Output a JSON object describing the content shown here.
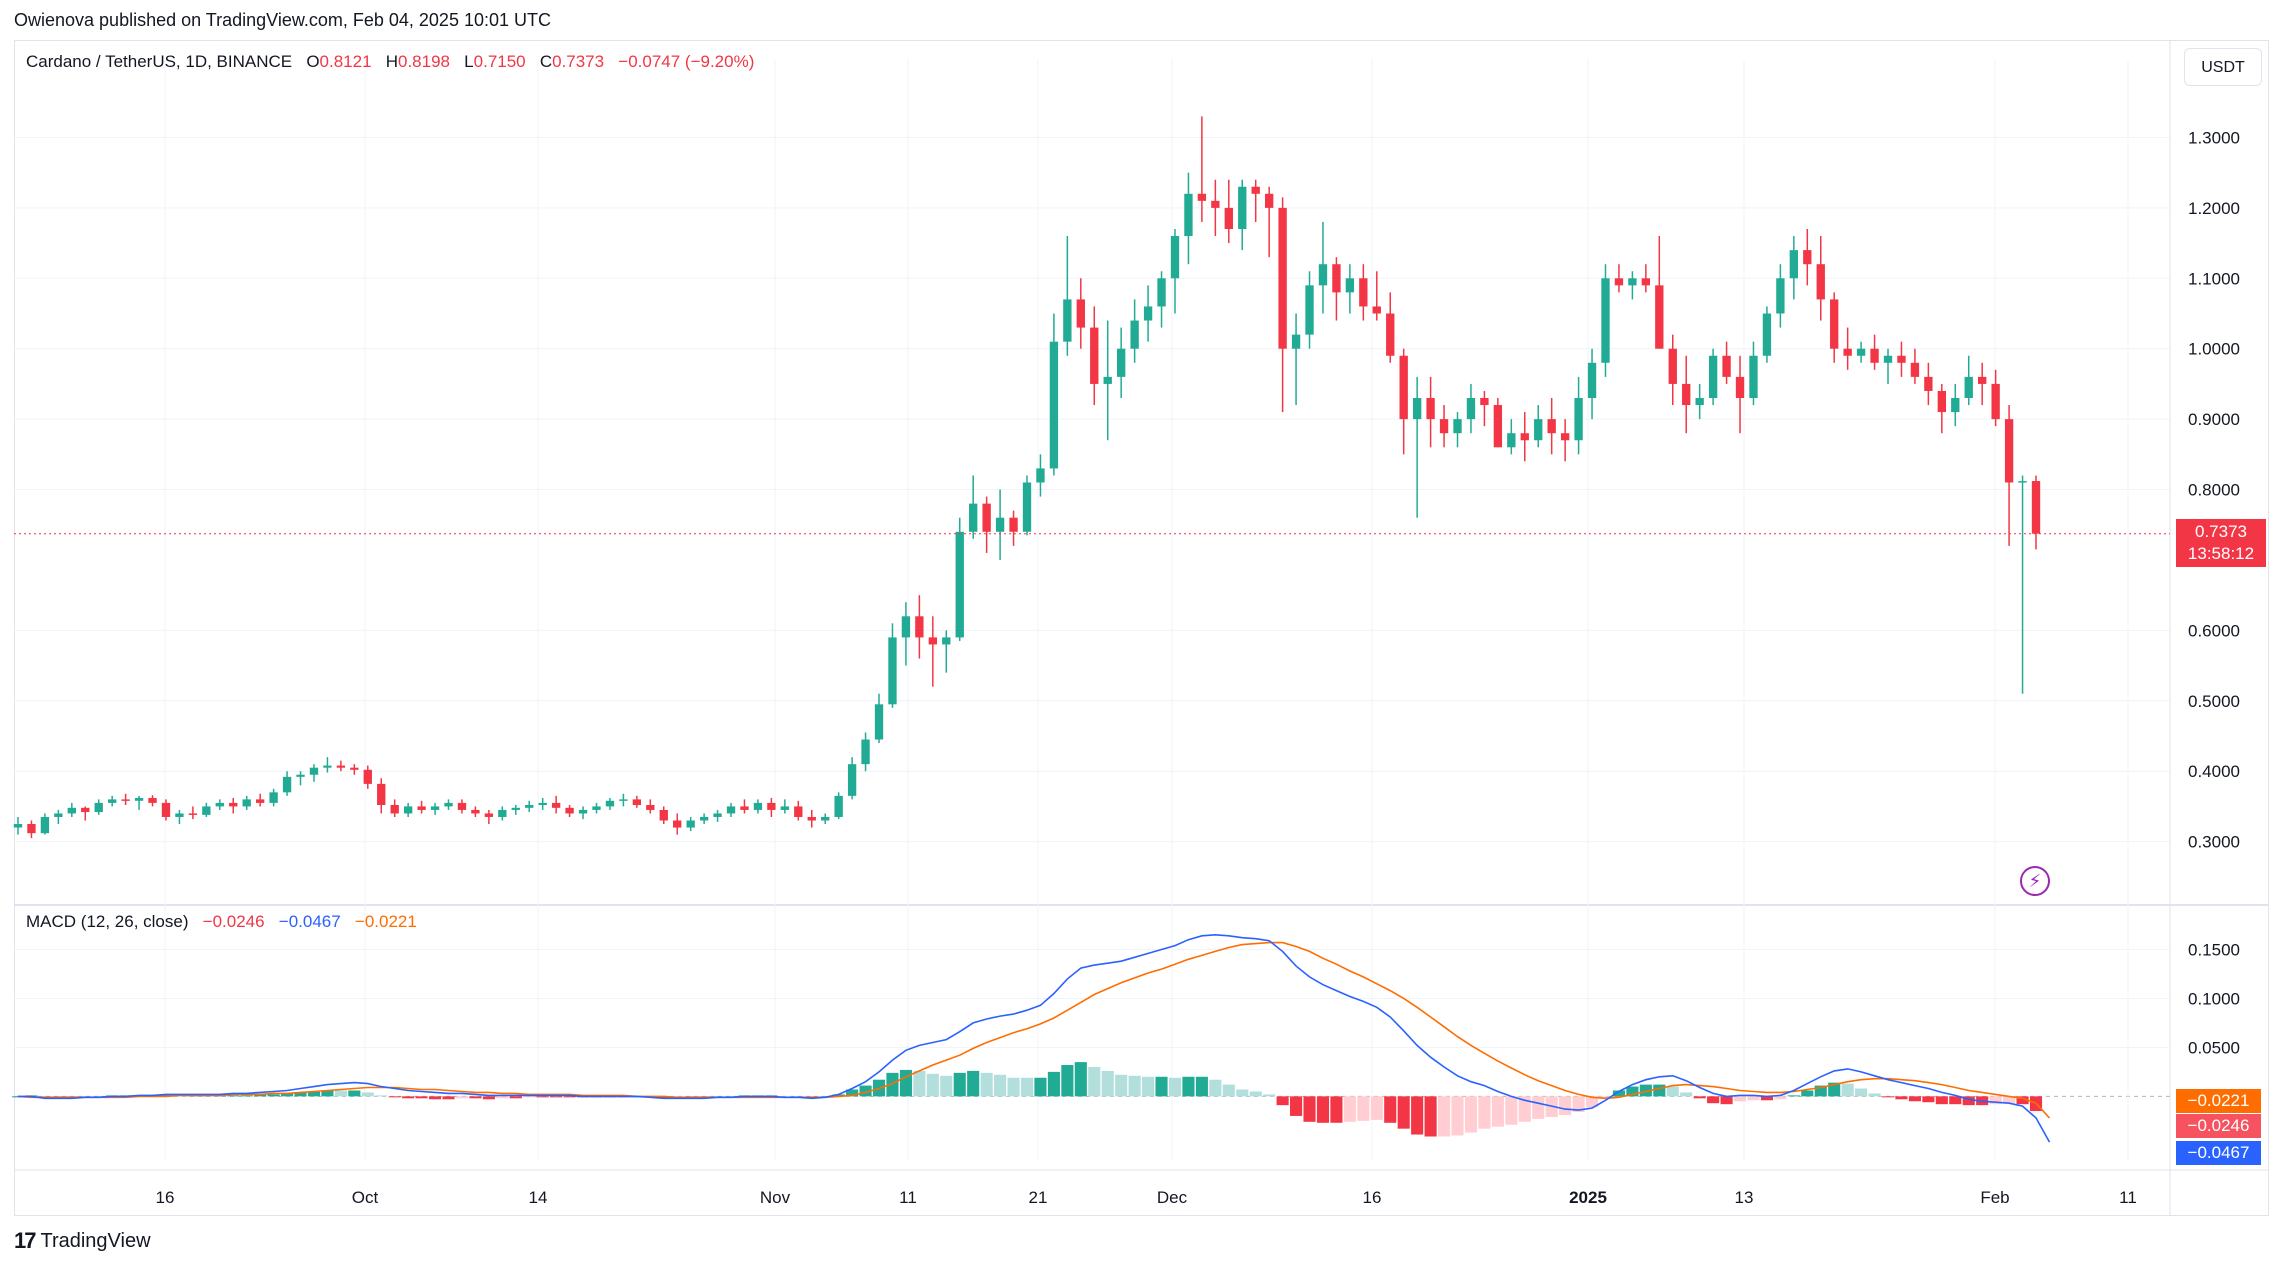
{
  "publisher_line": "Owienova published on TradingView.com, Feb 04, 2025 10:01 UTC",
  "symbol": {
    "title": "Cardano / TetherUS, 1D, BINANCE",
    "o_label": "O",
    "o_value": "0.8121",
    "h_label": "H",
    "h_value": "0.8198",
    "l_label": "L",
    "l_value": "0.7150",
    "c_label": "C",
    "c_value": "0.7373",
    "change": "−0.0747 (−9.20%)"
  },
  "currency_button": "USDT",
  "last_price": {
    "value": "0.7373",
    "countdown": "13:58:12"
  },
  "macd": {
    "label": "MACD (12, 26, close)",
    "hist_value": "−0.0246",
    "macd_value": "−0.0467",
    "signal_value": "−0.0221"
  },
  "footer_brand": "TradingView",
  "colors": {
    "up": "#22ab94",
    "down": "#f23645",
    "up_light": "#b2dfdb",
    "down_light": "#ffcdd2",
    "macd_line": "#2962ff",
    "signal_line": "#ff6d00",
    "grid": "#f0f3fa",
    "text": "#131722"
  },
  "chart_data": {
    "type": "candlestick",
    "price_axis": {
      "ticks": [
        "1.3000",
        "1.2000",
        "1.1000",
        "1.0000",
        "0.9000",
        "0.8000",
        "0.6000",
        "0.5000",
        "0.4000",
        "0.3000"
      ],
      "range": [
        0.21,
        1.41
      ]
    },
    "macd_axis": {
      "ticks": [
        "0.1500",
        "0.1000",
        "0.0500"
      ],
      "range": [
        -0.065,
        0.175
      ]
    },
    "time_axis": [
      "16",
      "Oct",
      "14",
      "Nov",
      "11",
      "21",
      "Dec",
      "16",
      "2025",
      "13",
      "Feb",
      "11"
    ],
    "candles_ohlc": [
      [
        0.32,
        0.335,
        0.31,
        0.325
      ],
      [
        0.325,
        0.33,
        0.305,
        0.312
      ],
      [
        0.312,
        0.34,
        0.31,
        0.335
      ],
      [
        0.335,
        0.345,
        0.325,
        0.34
      ],
      [
        0.34,
        0.355,
        0.335,
        0.348
      ],
      [
        0.348,
        0.35,
        0.33,
        0.342
      ],
      [
        0.342,
        0.36,
        0.338,
        0.355
      ],
      [
        0.355,
        0.365,
        0.35,
        0.36
      ],
      [
        0.36,
        0.368,
        0.352,
        0.358
      ],
      [
        0.358,
        0.365,
        0.345,
        0.362
      ],
      [
        0.362,
        0.366,
        0.35,
        0.355
      ],
      [
        0.355,
        0.36,
        0.33,
        0.335
      ],
      [
        0.335,
        0.345,
        0.325,
        0.34
      ],
      [
        0.34,
        0.35,
        0.332,
        0.338
      ],
      [
        0.338,
        0.355,
        0.335,
        0.35
      ],
      [
        0.35,
        0.36,
        0.345,
        0.355
      ],
      [
        0.355,
        0.362,
        0.34,
        0.35
      ],
      [
        0.35,
        0.365,
        0.345,
        0.36
      ],
      [
        0.36,
        0.368,
        0.35,
        0.355
      ],
      [
        0.355,
        0.375,
        0.35,
        0.37
      ],
      [
        0.37,
        0.4,
        0.365,
        0.392
      ],
      [
        0.392,
        0.4,
        0.38,
        0.395
      ],
      [
        0.395,
        0.41,
        0.385,
        0.405
      ],
      [
        0.405,
        0.42,
        0.398,
        0.408
      ],
      [
        0.408,
        0.415,
        0.4,
        0.405
      ],
      [
        0.405,
        0.41,
        0.395,
        0.402
      ],
      [
        0.402,
        0.408,
        0.375,
        0.382
      ],
      [
        0.382,
        0.39,
        0.34,
        0.352
      ],
      [
        0.352,
        0.36,
        0.335,
        0.34
      ],
      [
        0.34,
        0.355,
        0.335,
        0.35
      ],
      [
        0.35,
        0.358,
        0.34,
        0.345
      ],
      [
        0.345,
        0.355,
        0.338,
        0.35
      ],
      [
        0.35,
        0.36,
        0.345,
        0.355
      ],
      [
        0.355,
        0.36,
        0.34,
        0.345
      ],
      [
        0.345,
        0.35,
        0.335,
        0.34
      ],
      [
        0.34,
        0.345,
        0.325,
        0.335
      ],
      [
        0.335,
        0.35,
        0.33,
        0.345
      ],
      [
        0.345,
        0.352,
        0.338,
        0.348
      ],
      [
        0.348,
        0.358,
        0.342,
        0.352
      ],
      [
        0.352,
        0.362,
        0.345,
        0.355
      ],
      [
        0.355,
        0.365,
        0.34,
        0.348
      ],
      [
        0.348,
        0.352,
        0.335,
        0.34
      ],
      [
        0.34,
        0.35,
        0.332,
        0.345
      ],
      [
        0.345,
        0.355,
        0.34,
        0.35
      ],
      [
        0.35,
        0.362,
        0.345,
        0.358
      ],
      [
        0.358,
        0.368,
        0.35,
        0.36
      ],
      [
        0.36,
        0.365,
        0.348,
        0.352
      ],
      [
        0.352,
        0.36,
        0.34,
        0.345
      ],
      [
        0.345,
        0.35,
        0.325,
        0.33
      ],
      [
        0.33,
        0.34,
        0.31,
        0.32
      ],
      [
        0.32,
        0.335,
        0.315,
        0.33
      ],
      [
        0.33,
        0.34,
        0.325,
        0.335
      ],
      [
        0.335,
        0.345,
        0.328,
        0.34
      ],
      [
        0.34,
        0.355,
        0.335,
        0.35
      ],
      [
        0.35,
        0.36,
        0.34,
        0.345
      ],
      [
        0.345,
        0.36,
        0.34,
        0.355
      ],
      [
        0.355,
        0.362,
        0.335,
        0.345
      ],
      [
        0.345,
        0.36,
        0.34,
        0.35
      ],
      [
        0.35,
        0.358,
        0.33,
        0.335
      ],
      [
        0.335,
        0.345,
        0.32,
        0.33
      ],
      [
        0.33,
        0.34,
        0.325,
        0.335
      ],
      [
        0.335,
        0.37,
        0.332,
        0.365
      ],
      [
        0.365,
        0.42,
        0.36,
        0.41
      ],
      [
        0.41,
        0.455,
        0.4,
        0.445
      ],
      [
        0.445,
        0.51,
        0.44,
        0.495
      ],
      [
        0.495,
        0.61,
        0.49,
        0.59
      ],
      [
        0.59,
        0.64,
        0.55,
        0.62
      ],
      [
        0.62,
        0.65,
        0.56,
        0.59
      ],
      [
        0.59,
        0.62,
        0.52,
        0.58
      ],
      [
        0.58,
        0.6,
        0.54,
        0.59
      ],
      [
        0.59,
        0.76,
        0.585,
        0.74
      ],
      [
        0.74,
        0.82,
        0.73,
        0.78
      ],
      [
        0.78,
        0.79,
        0.71,
        0.74
      ],
      [
        0.74,
        0.8,
        0.7,
        0.76
      ],
      [
        0.76,
        0.77,
        0.72,
        0.74
      ],
      [
        0.74,
        0.82,
        0.735,
        0.81
      ],
      [
        0.81,
        0.85,
        0.79,
        0.83
      ],
      [
        0.83,
        1.05,
        0.82,
        1.01
      ],
      [
        1.01,
        1.16,
        0.99,
        1.07
      ],
      [
        1.07,
        1.1,
        1.0,
        1.03
      ],
      [
        1.03,
        1.06,
        0.92,
        0.95
      ],
      [
        0.95,
        1.04,
        0.87,
        0.96
      ],
      [
        0.96,
        1.03,
        0.93,
        1.0
      ],
      [
        1.0,
        1.07,
        0.98,
        1.04
      ],
      [
        1.04,
        1.09,
        1.01,
        1.06
      ],
      [
        1.06,
        1.11,
        1.03,
        1.1
      ],
      [
        1.1,
        1.17,
        1.05,
        1.16
      ],
      [
        1.16,
        1.25,
        1.12,
        1.22
      ],
      [
        1.22,
        1.33,
        1.18,
        1.21
      ],
      [
        1.21,
        1.24,
        1.16,
        1.2
      ],
      [
        1.2,
        1.24,
        1.15,
        1.17
      ],
      [
        1.17,
        1.24,
        1.14,
        1.23
      ],
      [
        1.23,
        1.24,
        1.18,
        1.22
      ],
      [
        1.22,
        1.23,
        1.13,
        1.2
      ],
      [
        1.2,
        1.215,
        0.91,
        1.0
      ],
      [
        1.0,
        1.05,
        0.92,
        1.02
      ],
      [
        1.02,
        1.11,
        1.0,
        1.09
      ],
      [
        1.09,
        1.18,
        1.05,
        1.12
      ],
      [
        1.12,
        1.13,
        1.04,
        1.08
      ],
      [
        1.08,
        1.12,
        1.05,
        1.1
      ],
      [
        1.1,
        1.12,
        1.04,
        1.06
      ],
      [
        1.06,
        1.11,
        1.04,
        1.05
      ],
      [
        1.05,
        1.08,
        0.98,
        0.99
      ],
      [
        0.99,
        1.0,
        0.85,
        0.9
      ],
      [
        0.9,
        0.96,
        0.76,
        0.93
      ],
      [
        0.93,
        0.96,
        0.86,
        0.9
      ],
      [
        0.9,
        0.92,
        0.86,
        0.88
      ],
      [
        0.88,
        0.91,
        0.86,
        0.9
      ],
      [
        0.9,
        0.95,
        0.88,
        0.93
      ],
      [
        0.93,
        0.94,
        0.89,
        0.92
      ],
      [
        0.92,
        0.93,
        0.86,
        0.86
      ],
      [
        0.86,
        0.9,
        0.85,
        0.88
      ],
      [
        0.88,
        0.91,
        0.84,
        0.87
      ],
      [
        0.87,
        0.92,
        0.86,
        0.9
      ],
      [
        0.9,
        0.93,
        0.85,
        0.88
      ],
      [
        0.88,
        0.9,
        0.84,
        0.87
      ],
      [
        0.87,
        0.96,
        0.85,
        0.93
      ],
      [
        0.93,
        1.0,
        0.9,
        0.98
      ],
      [
        0.98,
        1.12,
        0.96,
        1.1
      ],
      [
        1.1,
        1.12,
        1.08,
        1.09
      ],
      [
        1.09,
        1.11,
        1.07,
        1.1
      ],
      [
        1.1,
        1.12,
        1.08,
        1.09
      ],
      [
        1.09,
        1.16,
        1.0,
        1.0
      ],
      [
        1.0,
        1.02,
        0.92,
        0.95
      ],
      [
        0.95,
        0.99,
        0.88,
        0.92
      ],
      [
        0.92,
        0.95,
        0.9,
        0.93
      ],
      [
        0.93,
        1.0,
        0.92,
        0.99
      ],
      [
        0.99,
        1.01,
        0.95,
        0.96
      ],
      [
        0.96,
        0.99,
        0.88,
        0.93
      ],
      [
        0.93,
        1.01,
        0.92,
        0.99
      ],
      [
        0.99,
        1.06,
        0.98,
        1.05
      ],
      [
        1.05,
        1.12,
        1.03,
        1.1
      ],
      [
        1.1,
        1.16,
        1.07,
        1.14
      ],
      [
        1.14,
        1.17,
        1.09,
        1.12
      ],
      [
        1.12,
        1.16,
        1.04,
        1.07
      ],
      [
        1.07,
        1.08,
        0.98,
        1.0
      ],
      [
        1.0,
        1.03,
        0.97,
        0.99
      ],
      [
        0.99,
        1.01,
        0.98,
        1.0
      ],
      [
        1.0,
        1.02,
        0.97,
        0.98
      ],
      [
        0.98,
        1.0,
        0.95,
        0.99
      ],
      [
        0.99,
        1.01,
        0.96,
        0.98
      ],
      [
        0.98,
        1.0,
        0.95,
        0.96
      ],
      [
        0.96,
        0.98,
        0.92,
        0.94
      ],
      [
        0.94,
        0.95,
        0.88,
        0.91
      ],
      [
        0.91,
        0.95,
        0.89,
        0.93
      ],
      [
        0.93,
        0.99,
        0.92,
        0.96
      ],
      [
        0.96,
        0.98,
        0.92,
        0.95
      ],
      [
        0.95,
        0.97,
        0.89,
        0.9
      ],
      [
        0.9,
        0.92,
        0.72,
        0.81
      ],
      [
        0.81,
        0.82,
        0.51,
        0.812
      ],
      [
        0.8121,
        0.8198,
        0.715,
        0.7373
      ]
    ],
    "macd_values": {
      "macd_line": [
        0.0,
        0.0,
        -0.002,
        -0.002,
        -0.002,
        -0.001,
        -0.001,
        0.0,
        0.0,
        0.001,
        0.001,
        0.002,
        0.002,
        0.002,
        0.002,
        0.002,
        0.003,
        0.003,
        0.004,
        0.005,
        0.006,
        0.008,
        0.01,
        0.012,
        0.013,
        0.014,
        0.013,
        0.01,
        0.008,
        0.006,
        0.005,
        0.004,
        0.003,
        0.003,
        0.002,
        0.001,
        0.001,
        0.001,
        0.001,
        0.001,
        0.001,
        0.001,
        0.0,
        0.0,
        0.0,
        0.0,
        0.0,
        -0.001,
        -0.002,
        -0.002,
        -0.002,
        -0.002,
        -0.001,
        -0.001,
        0.0,
        0.0,
        0.0,
        -0.001,
        -0.001,
        -0.002,
        -0.001,
        0.002,
        0.008,
        0.015,
        0.025,
        0.037,
        0.047,
        0.052,
        0.055,
        0.058,
        0.066,
        0.075,
        0.079,
        0.082,
        0.084,
        0.088,
        0.093,
        0.105,
        0.12,
        0.131,
        0.134,
        0.136,
        0.138,
        0.142,
        0.146,
        0.15,
        0.154,
        0.16,
        0.164,
        0.165,
        0.164,
        0.162,
        0.161,
        0.159,
        0.148,
        0.133,
        0.122,
        0.114,
        0.108,
        0.102,
        0.097,
        0.091,
        0.081,
        0.067,
        0.052,
        0.04,
        0.03,
        0.021,
        0.015,
        0.011,
        0.005,
        0.0,
        -0.004,
        -0.007,
        -0.01,
        -0.013,
        -0.014,
        -0.012,
        -0.004,
        0.005,
        0.012,
        0.017,
        0.02,
        0.021,
        0.016,
        0.009,
        0.003,
        0.0,
        0.001,
        0.001,
        0.0,
        0.001,
        0.006,
        0.013,
        0.02,
        0.026,
        0.028,
        0.025,
        0.021,
        0.017,
        0.014,
        0.011,
        0.008,
        0.004,
        0.001,
        -0.003,
        -0.005,
        -0.006,
        -0.007,
        -0.01,
        -0.022,
        -0.0467
      ],
      "signal_line": [
        0.0,
        -0.001,
        -0.001,
        -0.001,
        -0.001,
        -0.001,
        -0.001,
        -0.001,
        -0.001,
        0.0,
        0.0,
        0.0,
        0.001,
        0.001,
        0.001,
        0.001,
        0.002,
        0.002,
        0.002,
        0.003,
        0.003,
        0.004,
        0.005,
        0.006,
        0.007,
        0.008,
        0.009,
        0.009,
        0.009,
        0.008,
        0.007,
        0.007,
        0.006,
        0.005,
        0.004,
        0.004,
        0.003,
        0.003,
        0.002,
        0.002,
        0.002,
        0.002,
        0.001,
        0.001,
        0.001,
        0.001,
        0.0,
        0.0,
        0.0,
        -0.001,
        -0.001,
        -0.001,
        -0.001,
        -0.001,
        -0.001,
        -0.001,
        -0.001,
        -0.001,
        -0.001,
        -0.001,
        -0.001,
        0.0,
        0.001,
        0.004,
        0.008,
        0.013,
        0.02,
        0.026,
        0.032,
        0.037,
        0.042,
        0.049,
        0.055,
        0.06,
        0.065,
        0.069,
        0.074,
        0.08,
        0.088,
        0.096,
        0.104,
        0.11,
        0.116,
        0.121,
        0.126,
        0.13,
        0.135,
        0.14,
        0.144,
        0.148,
        0.152,
        0.155,
        0.156,
        0.157,
        0.157,
        0.153,
        0.148,
        0.141,
        0.135,
        0.128,
        0.122,
        0.115,
        0.108,
        0.1,
        0.091,
        0.081,
        0.071,
        0.061,
        0.052,
        0.044,
        0.036,
        0.029,
        0.022,
        0.016,
        0.011,
        0.006,
        0.002,
        -0.001,
        -0.002,
        -0.001,
        0.002,
        0.005,
        0.008,
        0.011,
        0.012,
        0.011,
        0.01,
        0.008,
        0.006,
        0.005,
        0.004,
        0.004,
        0.005,
        0.007,
        0.009,
        0.012,
        0.015,
        0.017,
        0.018,
        0.018,
        0.017,
        0.016,
        0.014,
        0.012,
        0.009,
        0.006,
        0.004,
        0.002,
        0.0,
        -0.002,
        -0.007,
        -0.0221
      ]
    }
  }
}
